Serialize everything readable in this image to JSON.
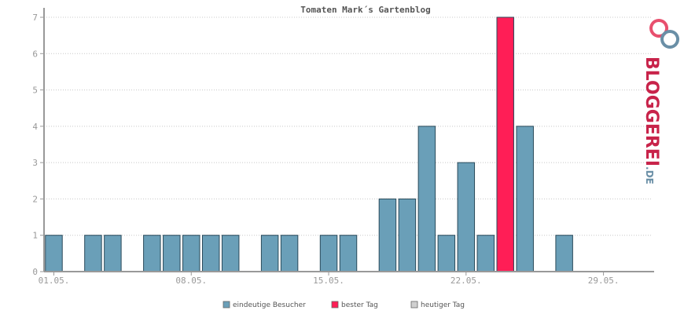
{
  "chart_data": {
    "type": "bar",
    "title": "Tomaten Mark´s Gartenblog",
    "xlabel": "",
    "ylabel": "",
    "ylim": [
      0,
      7
    ],
    "y_ticks": [
      0,
      1,
      2,
      3,
      4,
      5,
      6,
      7
    ],
    "grid": true,
    "legend_position": "bottom",
    "x_ticks": [
      {
        "label": "01.05.",
        "index": 0
      },
      {
        "label": "08.05.",
        "index": 7
      },
      {
        "label": "15.05.",
        "index": 14
      },
      {
        "label": "22.05.",
        "index": 21
      },
      {
        "label": "29.05.",
        "index": 28
      }
    ],
    "categories": [
      "01.05.",
      "02.05.",
      "03.05.",
      "04.05.",
      "05.05.",
      "06.05.",
      "07.05.",
      "08.05.",
      "09.05.",
      "10.05.",
      "11.05.",
      "12.05.",
      "13.05.",
      "14.05.",
      "15.05.",
      "16.05.",
      "17.05.",
      "18.05.",
      "19.05.",
      "20.05.",
      "21.05.",
      "22.05.",
      "23.05.",
      "24.05.",
      "25.05.",
      "26.05.",
      "27.05.",
      "28.05.",
      "29.05.",
      "30.05.",
      "31.05."
    ],
    "values": [
      1,
      0,
      1,
      1,
      0,
      1,
      1,
      1,
      1,
      1,
      0,
      1,
      1,
      0,
      1,
      1,
      0,
      2,
      2,
      4,
      1,
      3,
      1,
      7,
      4,
      0,
      1,
      0,
      0,
      0,
      0
    ],
    "best_day_index": 23,
    "legend": [
      {
        "label": "eindeutige Besucher",
        "color": "#6a9fb8"
      },
      {
        "label": "bester Tag",
        "color": "#ff1e56"
      },
      {
        "label": "heutiger Tag",
        "color": "#d0d0d0"
      }
    ],
    "colors": {
      "bar": "#6a9fb8",
      "best": "#ff1e56",
      "today": "#d0d0d0",
      "bar_stroke": "#2a4a5a"
    }
  },
  "logo": {
    "text_main": "BLOGGEREI",
    "text_suffix": ".DE",
    "icon": "bloggerei-logo-icon"
  }
}
